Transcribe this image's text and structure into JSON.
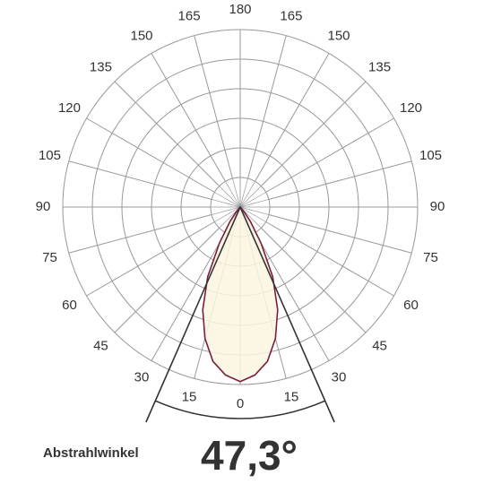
{
  "chart_data": {
    "type": "polar",
    "angle_ticks": [
      0,
      15,
      30,
      45,
      60,
      75,
      90,
      105,
      120,
      135,
      150,
      165,
      180
    ],
    "rlim": [
      0,
      60
    ],
    "rticks": [
      10,
      20,
      30,
      40,
      50,
      60
    ],
    "angles": [
      -45,
      -40,
      -35,
      -30,
      -25,
      -20,
      -15,
      -10,
      -5,
      0,
      5,
      10,
      15,
      20,
      25,
      30,
      35,
      40,
      45
    ],
    "values": [
      0,
      2,
      6,
      14,
      26,
      37,
      46,
      53,
      57,
      59,
      57,
      53,
      46,
      37,
      26,
      14,
      6,
      2,
      0
    ],
    "color": "#7a1f3d",
    "fill": "#fbf5df",
    "beam_angle": 47.3,
    "beam_angle_label": "47,3°",
    "beam_angle_title": "Abstrahlwinkel"
  }
}
